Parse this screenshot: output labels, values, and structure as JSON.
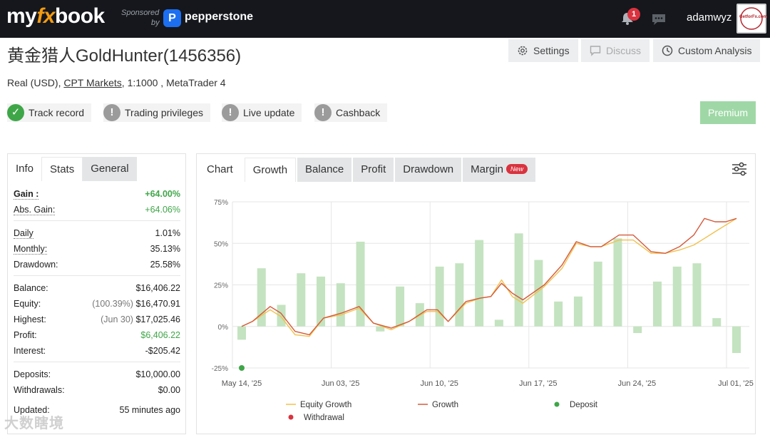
{
  "header": {
    "logo_my": "my",
    "logo_fx": "fx",
    "logo_book": "book",
    "sponsored": "Sponsored",
    "by": "by",
    "sponsor_icon": "P",
    "sponsor_name": "pepperstone",
    "notification_count": "1",
    "username": "adamwyz",
    "avatar_text": "GetforFx.com"
  },
  "account": {
    "title": "黄金猎人GoldHunter(1456356)",
    "type": "Real (USD), ",
    "broker": "CPT Markets",
    "details": ", 1:1000 , MetaTrader 4"
  },
  "actions": {
    "settings": "Settings",
    "discuss": "Discuss",
    "custom_analysis": "Custom Analysis",
    "premium": "Premium"
  },
  "badges": [
    {
      "label": "Track record",
      "status": "verified"
    },
    {
      "label": "Trading privileges",
      "status": "unverified"
    },
    {
      "label": "Live update",
      "status": "unverified"
    },
    {
      "label": "Cashback",
      "status": "unverified"
    }
  ],
  "left_tabs": {
    "info": "Info",
    "stats": "Stats",
    "general": "General"
  },
  "stats": {
    "gain_label": "Gain :",
    "gain_value": "+64.00%",
    "abs_gain_label": "Abs. Gain:",
    "abs_gain_value": "+64.06%",
    "daily_label": "Daily",
    "daily_value": "1.01%",
    "monthly_label": "Monthly:",
    "monthly_value": "35.13%",
    "drawdown_label": "Drawdown:",
    "drawdown_value": "25.58%",
    "balance_label": "Balance:",
    "balance_value": "$16,406.22",
    "equity_label": "Equity:",
    "equity_pct": "(100.39%)",
    "equity_value": "$16,470.91",
    "highest_label": "Highest:",
    "highest_date": "(Jun 30)",
    "highest_value": "$17,025.46",
    "profit_label": "Profit:",
    "profit_value": "$6,406.22",
    "interest_label": "Interest:",
    "interest_value": "-$205.42",
    "deposits_label": "Deposits:",
    "deposits_value": "$10,000.00",
    "withdrawals_label": "Withdrawals:",
    "withdrawals_value": "$0.00",
    "updated_label": "Updated:",
    "updated_value": "55 minutes ago"
  },
  "chart_tabs": {
    "chart": "Chart",
    "growth": "Growth",
    "balance": "Balance",
    "profit": "Profit",
    "drawdown": "Drawdown",
    "margin": "Margin",
    "new_badge": "New"
  },
  "watermark": "大数瞎境",
  "colors": {
    "growth": "#d35a3c",
    "equity_growth": "#f2c04c",
    "bars": "#c4e3c0",
    "deposit": "#3fa648",
    "withdrawal": "#d9333f",
    "grid": "#e6e6e6"
  },
  "chart_data": {
    "type": "bar",
    "ylim": [
      -25,
      75
    ],
    "yticks": [
      "75%",
      "50%",
      "25%",
      "0%",
      "-25%"
    ],
    "xticks": [
      "May 14, '25",
      "Jun 03, '25",
      "Jun 10, '25",
      "Jun 17, '25",
      "Jun 24, '25",
      "Jul 01, '25"
    ],
    "legend": [
      "Equity Growth",
      "Growth",
      "Deposit",
      "Withdrawal"
    ],
    "bars": [
      -8,
      35,
      13,
      32,
      30,
      26,
      51,
      -3,
      24,
      14,
      36,
      38,
      52,
      4,
      56,
      40,
      15,
      18,
      39,
      53,
      -4,
      27,
      36,
      38,
      5,
      -16
    ],
    "growth": [
      [
        0,
        0
      ],
      [
        0.3,
        3
      ],
      [
        0.8,
        12
      ],
      [
        1.1,
        8
      ],
      [
        1.5,
        -3
      ],
      [
        1.9,
        -5
      ],
      [
        2.3,
        5
      ],
      [
        2.8,
        8
      ],
      [
        3.3,
        12
      ],
      [
        3.7,
        2
      ],
      [
        4.2,
        -1
      ],
      [
        4.7,
        3
      ],
      [
        5.2,
        10
      ],
      [
        5.5,
        10
      ],
      [
        5.8,
        3
      ],
      [
        6.3,
        15
      ],
      [
        6.7,
        17
      ],
      [
        7.0,
        18
      ],
      [
        7.3,
        26
      ],
      [
        7.6,
        20
      ],
      [
        7.9,
        16
      ],
      [
        8.5,
        25
      ],
      [
        9.0,
        37
      ],
      [
        9.4,
        51
      ],
      [
        9.8,
        48
      ],
      [
        10.1,
        48
      ],
      [
        10.6,
        55
      ],
      [
        11.0,
        55
      ],
      [
        11.5,
        45
      ],
      [
        11.9,
        44
      ],
      [
        12.3,
        48
      ],
      [
        12.7,
        55
      ],
      [
        13.0,
        65
      ],
      [
        13.3,
        63
      ],
      [
        13.6,
        63
      ],
      [
        13.9,
        65
      ]
    ],
    "equity_growth": [
      [
        0,
        0
      ],
      [
        0.3,
        3
      ],
      [
        0.8,
        10
      ],
      [
        1.1,
        6
      ],
      [
        1.5,
        -5
      ],
      [
        1.9,
        -6
      ],
      [
        2.3,
        5
      ],
      [
        2.8,
        7
      ],
      [
        3.3,
        11
      ],
      [
        3.7,
        2
      ],
      [
        4.2,
        -2
      ],
      [
        4.7,
        3
      ],
      [
        5.2,
        9
      ],
      [
        5.5,
        9
      ],
      [
        5.8,
        3
      ],
      [
        6.3,
        14
      ],
      [
        6.7,
        17
      ],
      [
        7.0,
        18
      ],
      [
        7.3,
        28
      ],
      [
        7.6,
        18
      ],
      [
        7.9,
        14
      ],
      [
        8.5,
        24
      ],
      [
        9.0,
        35
      ],
      [
        9.4,
        50
      ],
      [
        9.8,
        48
      ],
      [
        10.1,
        48
      ],
      [
        10.6,
        52
      ],
      [
        11.0,
        52
      ],
      [
        11.5,
        44
      ],
      [
        11.9,
        44
      ],
      [
        12.3,
        46
      ],
      [
        12.7,
        49
      ],
      [
        13.0,
        53
      ],
      [
        13.3,
        57
      ],
      [
        13.6,
        61
      ],
      [
        13.9,
        65
      ]
    ],
    "deposits": [
      [
        0,
        -25
      ]
    ]
  }
}
